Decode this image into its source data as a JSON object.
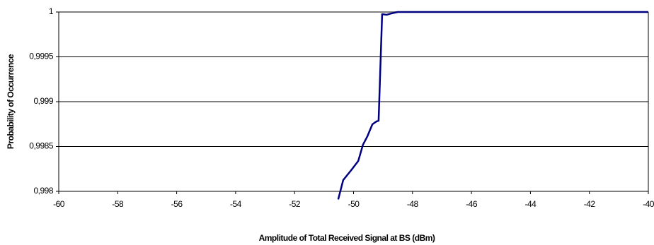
{
  "chart_data": {
    "type": "line",
    "x_label": "Amplitude of Total Received Signal at BS (dBm)",
    "y_label": "Probability of Occurrence",
    "xlim": [
      -60,
      -40
    ],
    "xticks": [
      -60,
      -58,
      -56,
      -54,
      -52,
      -50,
      -48,
      -46,
      -44,
      -42,
      -40
    ],
    "ylim": [
      0.998,
      1
    ],
    "yticks": [
      {
        "value": 0.998,
        "label": "0,998"
      },
      {
        "value": 0.9985,
        "label": "0,9985"
      },
      {
        "value": 0.999,
        "label": "0,999"
      },
      {
        "value": 0.9995,
        "label": "0,9995"
      },
      1
    ],
    "grid": true,
    "series": [
      {
        "color": "#000080",
        "x": [
          -50.52,
          -50.35,
          -50.06,
          -49.84,
          -49.68,
          -49.53,
          -49.36,
          -49.22,
          -49.15,
          -49.03,
          -48.88,
          -48.72,
          -48.5,
          -40
        ],
        "values": [
          0.99791,
          0.998126,
          0.998244,
          0.998339,
          0.99852,
          0.998614,
          0.998748,
          0.99878,
          0.998787,
          0.999976,
          0.999969,
          0.999984,
          1,
          1
        ]
      }
    ]
  }
}
